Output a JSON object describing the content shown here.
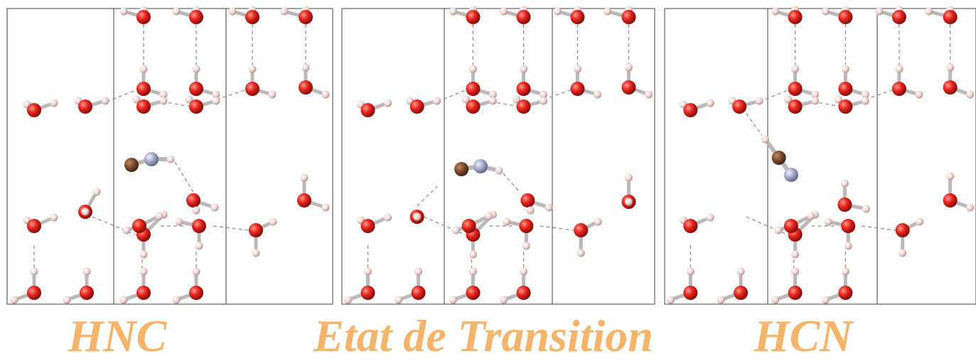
{
  "captions": [
    "HNC",
    "Etat de Transition",
    "HCN"
  ],
  "colors": {
    "caption": "#f4b46a",
    "oxygen": "#e8251e",
    "hydrogen": "#f2d8d4",
    "carbon": "#7a4a2c",
    "nitrogen": "#a2a8c8",
    "bond": "#bdb8b8",
    "hbond": "#8c8c8c",
    "cell_border": "#404040"
  },
  "panels": [
    {
      "name": "HNC",
      "molecule": "H-N-C",
      "molecule_atoms": [
        "carbon",
        "nitrogen",
        "hydrogen"
      ]
    },
    {
      "name": "Etat de Transition",
      "molecule": "C-N-H",
      "molecule_atoms": [
        "carbon",
        "nitrogen",
        "hydrogen"
      ]
    },
    {
      "name": "HCN",
      "molecule": "H-C-N",
      "molecule_atoms": [
        "hydrogen",
        "carbon",
        "nitrogen"
      ]
    }
  ]
}
